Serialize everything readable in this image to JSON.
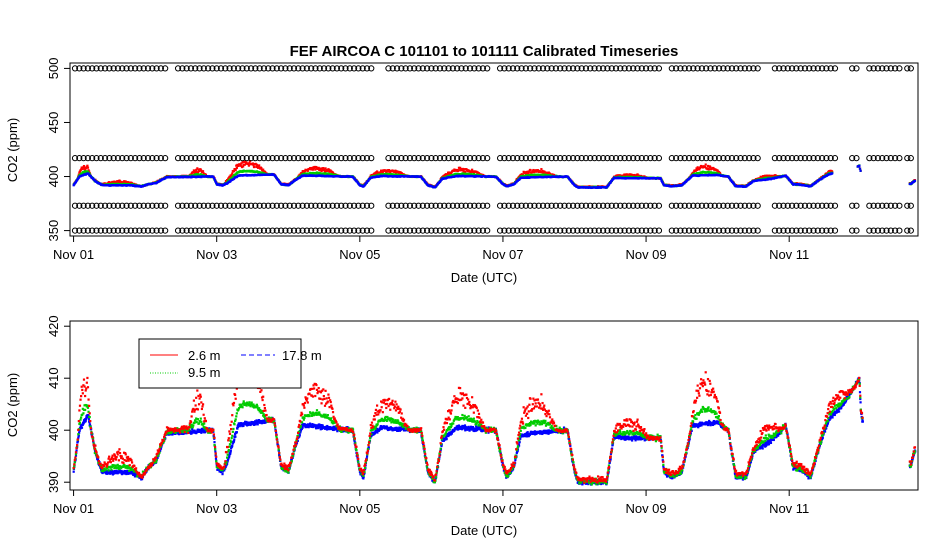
{
  "chart_data": [
    {
      "type": "scatter",
      "title": "FEF   AIRCOA  C    101101  to  101111   Calibrated Timeseries",
      "xlabel": "Date (UTC)",
      "ylabel": "CO2 (ppm)",
      "xlim_days": [
        -0.05,
        11.8
      ],
      "ylim": [
        345,
        505
      ],
      "x_ticks": [
        {
          "day": 0,
          "label": "Nov 01"
        },
        {
          "day": 2,
          "label": "Nov 03"
        },
        {
          "day": 4,
          "label": "Nov 05"
        },
        {
          "day": 6,
          "label": "Nov 07"
        },
        {
          "day": 8,
          "label": "Nov 09"
        },
        {
          "day": 10,
          "label": "Nov 11"
        }
      ],
      "y_ticks": [
        350,
        400,
        450,
        500
      ],
      "calibration_standards_ppm": [
        500,
        417,
        373,
        350
      ],
      "calibration_gaps_days": [
        [
          1.3,
          1.45
        ],
        [
          4.2,
          4.35
        ],
        [
          5.8,
          5.95
        ],
        [
          8.2,
          8.35
        ],
        [
          9.6,
          9.75
        ],
        [
          10.7,
          10.85
        ],
        [
          11.0,
          11.12
        ],
        [
          11.55,
          11.9
        ]
      ],
      "data_end_day": 10.6,
      "late_segment_days": [
        10.95,
        11.0
      ],
      "series": [
        {
          "name": "2.6 m",
          "color": "#ff0000"
        },
        {
          "name": "9.5 m",
          "color": "#00cc00"
        },
        {
          "name": "17.8 m",
          "color": "#0000ff"
        },
        {
          "name": "calibration",
          "color": "#000000"
        }
      ]
    },
    {
      "type": "scatter",
      "title": "",
      "xlabel": "Date (UTC)",
      "ylabel": "CO2 (ppm)",
      "xlim_days": [
        -0.05,
        11.8
      ],
      "ylim": [
        388.5,
        421
      ],
      "x_ticks": [
        {
          "day": 0,
          "label": "Nov 01"
        },
        {
          "day": 2,
          "label": "Nov 03"
        },
        {
          "day": 4,
          "label": "Nov 05"
        },
        {
          "day": 6,
          "label": "Nov 07"
        },
        {
          "day": 8,
          "label": "Nov 09"
        },
        {
          "day": 10,
          "label": "Nov 11"
        }
      ],
      "y_ticks": [
        390,
        400,
        410,
        420
      ],
      "legend_location": "top-left",
      "series": [
        {
          "name": "2.6 m",
          "color": "#ff0000",
          "line_label": "2.6 m"
        },
        {
          "name": "9.5 m",
          "color": "#00cc00",
          "line_label": "9.5 m"
        },
        {
          "name": "17.8 m",
          "color": "#0000ff",
          "line_label": "17.8 m"
        }
      ],
      "baseline_days": [
        {
          "d": 0.0,
          "v": 392
        },
        {
          "d": 0.08,
          "v": 400
        },
        {
          "d": 0.2,
          "v": 403
        },
        {
          "d": 0.3,
          "v": 396
        },
        {
          "d": 0.4,
          "v": 392
        },
        {
          "d": 0.6,
          "v": 392
        },
        {
          "d": 0.8,
          "v": 392
        },
        {
          "d": 0.95,
          "v": 391
        },
        {
          "d": 1.05,
          "v": 393
        },
        {
          "d": 1.15,
          "v": 394
        },
        {
          "d": 1.3,
          "v": 399.5
        },
        {
          "d": 1.95,
          "v": 400
        },
        {
          "d": 2.0,
          "v": 393
        },
        {
          "d": 2.08,
          "v": 392
        },
        {
          "d": 2.15,
          "v": 394
        },
        {
          "d": 2.3,
          "v": 401
        },
        {
          "d": 2.8,
          "v": 402
        },
        {
          "d": 2.9,
          "v": 393
        },
        {
          "d": 3.0,
          "v": 392
        },
        {
          "d": 3.1,
          "v": 397
        },
        {
          "d": 3.2,
          "v": 401
        },
        {
          "d": 3.9,
          "v": 400
        },
        {
          "d": 4.0,
          "v": 392
        },
        {
          "d": 4.05,
          "v": 391
        },
        {
          "d": 4.15,
          "v": 399
        },
        {
          "d": 4.3,
          "v": 400.5
        },
        {
          "d": 4.85,
          "v": 400
        },
        {
          "d": 4.95,
          "v": 392
        },
        {
          "d": 5.05,
          "v": 390
        },
        {
          "d": 5.15,
          "v": 398
        },
        {
          "d": 5.35,
          "v": 400.5
        },
        {
          "d": 5.9,
          "v": 400
        },
        {
          "d": 6.0,
          "v": 393
        },
        {
          "d": 6.05,
          "v": 391
        },
        {
          "d": 6.15,
          "v": 393
        },
        {
          "d": 6.25,
          "v": 399
        },
        {
          "d": 6.45,
          "v": 399.5
        },
        {
          "d": 6.9,
          "v": 400
        },
        {
          "d": 7.0,
          "v": 392
        },
        {
          "d": 7.05,
          "v": 390
        },
        {
          "d": 7.45,
          "v": 390
        },
        {
          "d": 7.55,
          "v": 399
        },
        {
          "d": 7.7,
          "v": 398.5
        },
        {
          "d": 8.2,
          "v": 398.5
        },
        {
          "d": 8.25,
          "v": 392
        },
        {
          "d": 8.35,
          "v": 391
        },
        {
          "d": 8.5,
          "v": 392
        },
        {
          "d": 8.65,
          "v": 401
        },
        {
          "d": 9.0,
          "v": 401.5
        },
        {
          "d": 9.15,
          "v": 400
        },
        {
          "d": 9.25,
          "v": 391
        },
        {
          "d": 9.4,
          "v": 391
        },
        {
          "d": 9.5,
          "v": 396
        },
        {
          "d": 9.75,
          "v": 398
        },
        {
          "d": 9.95,
          "v": 401
        },
        {
          "d": 10.05,
          "v": 393
        },
        {
          "d": 10.15,
          "v": 392.5
        },
        {
          "d": 10.3,
          "v": 391
        },
        {
          "d": 10.4,
          "v": 396
        },
        {
          "d": 10.55,
          "v": 402
        },
        {
          "d": 10.7,
          "v": 404
        },
        {
          "d": 10.85,
          "v": 407
        },
        {
          "d": 10.98,
          "v": 410
        },
        {
          "d": 11.0,
          "v": 404
        },
        {
          "d": 11.02,
          "v": 402
        },
        {
          "d": 11.7,
          "v": 393
        },
        {
          "d": 11.75,
          "v": 396
        }
      ],
      "gaps_days": [
        [
          11.03,
          11.68
        ]
      ],
      "nocturnal_excess": [
        {
          "from": 0.05,
          "to": 0.3,
          "amp": 7
        },
        {
          "from": 0.35,
          "to": 1.1,
          "amp": 3
        },
        {
          "from": 1.6,
          "to": 1.95,
          "amp": 6
        },
        {
          "from": 2.1,
          "to": 2.9,
          "amp": 11
        },
        {
          "from": 3.1,
          "to": 3.9,
          "amp": 7
        },
        {
          "from": 4.1,
          "to": 4.85,
          "amp": 5
        },
        {
          "from": 5.1,
          "to": 5.95,
          "amp": 6
        },
        {
          "from": 6.15,
          "to": 6.95,
          "amp": 6
        },
        {
          "from": 7.5,
          "to": 8.2,
          "amp": 3
        },
        {
          "from": 8.6,
          "to": 9.2,
          "amp": 8
        },
        {
          "from": 9.5,
          "to": 10.0,
          "amp": 3
        },
        {
          "from": 10.4,
          "to": 11.0,
          "amp": 3
        }
      ]
    }
  ]
}
